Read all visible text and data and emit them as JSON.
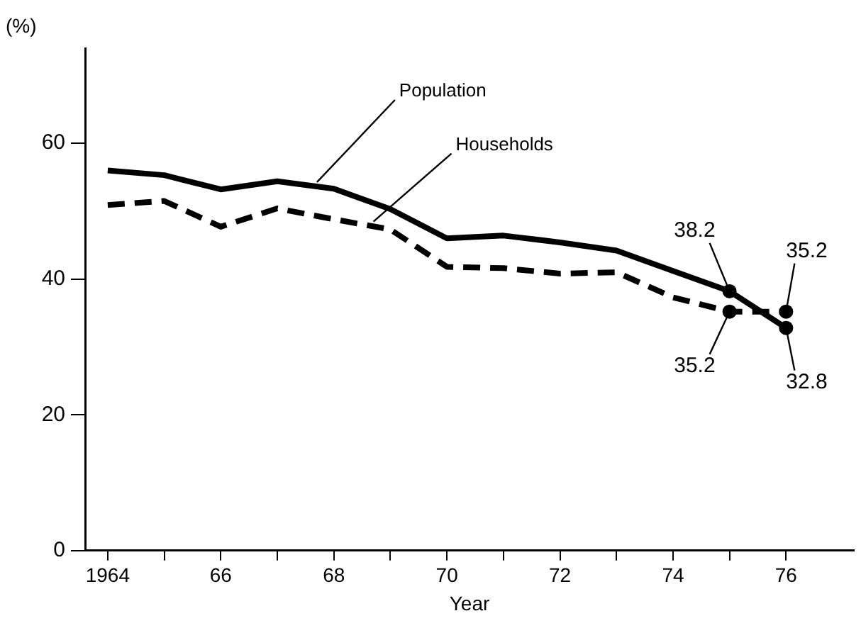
{
  "chart_data": {
    "type": "line",
    "ylabel": "(%)",
    "xlabel": "Year",
    "x": [
      1964,
      1965,
      1966,
      1967,
      1968,
      1969,
      1970,
      1971,
      1972,
      1973,
      1974,
      1975,
      1976
    ],
    "series": [
      {
        "name": "Population",
        "color": "#000000",
        "line_style": "solid",
        "values": [
          56.0,
          55.3,
          53.2,
          54.4,
          53.3,
          50.3,
          46.0,
          46.4,
          45.4,
          44.2,
          41.2,
          38.2,
          32.8
        ],
        "value_labels": [
          null,
          null,
          null,
          null,
          null,
          null,
          null,
          null,
          null,
          null,
          null,
          "38.2",
          "32.8"
        ]
      },
      {
        "name": "Households",
        "color": "#000000",
        "line_style": "dashed",
        "values": [
          50.9,
          51.5,
          47.7,
          50.4,
          48.8,
          47.3,
          41.8,
          41.6,
          40.8,
          41.0,
          37.3,
          35.2,
          35.2
        ],
        "value_labels": [
          null,
          null,
          null,
          null,
          null,
          null,
          null,
          null,
          null,
          null,
          null,
          "35.2",
          "35.2"
        ]
      }
    ],
    "xlim": [
      1963.6,
      1977.2
    ],
    "xticks": [
      {
        "value": 1964,
        "label": "1964"
      },
      {
        "value": 1965,
        "label": null
      },
      {
        "value": 1966,
        "label": "66"
      },
      {
        "value": 1967,
        "label": null
      },
      {
        "value": 1968,
        "label": "68"
      },
      {
        "value": 1969,
        "label": null
      },
      {
        "value": 1970,
        "label": "70"
      },
      {
        "value": 1971,
        "label": null
      },
      {
        "value": 1972,
        "label": "72"
      },
      {
        "value": 1973,
        "label": null
      },
      {
        "value": 1974,
        "label": "74"
      },
      {
        "value": 1975,
        "label": null
      },
      {
        "value": 1976,
        "label": "76"
      }
    ],
    "ylim": [
      0,
      74
    ],
    "yticks": [
      0,
      20,
      40,
      60
    ],
    "grid": false,
    "legend": false
  }
}
